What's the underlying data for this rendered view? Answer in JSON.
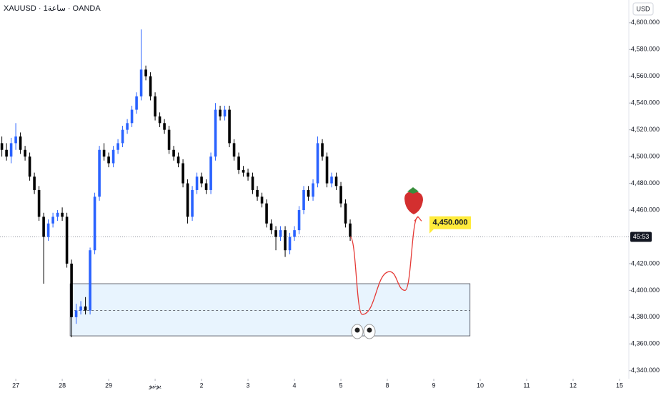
{
  "chart_data": {
    "type": "candlestick",
    "title": "XAUUSD · 1ساعة · OANDA",
    "currency": "USD",
    "up_color": "#2962ff",
    "down_color": "#000000",
    "x": [
      -0.3,
      -0.2,
      -0.1,
      0,
      0.1,
      0.2,
      0.3,
      0.4,
      0.5,
      0.6,
      0.7,
      0.8,
      0.9,
      1.0,
      1.1,
      1.2,
      1.3,
      1.4,
      1.5,
      1.6,
      1.7,
      1.8,
      1.9,
      2.0,
      2.1,
      2.2,
      2.3,
      2.4,
      2.5,
      2.6,
      2.7,
      2.8,
      2.9,
      3.0,
      3.1,
      3.2,
      3.3,
      3.4,
      3.5,
      3.6,
      3.7,
      3.8,
      3.9,
      4.0,
      4.1,
      4.2,
      4.3,
      4.4,
      4.5,
      4.6,
      4.7,
      4.8,
      4.9,
      5.0,
      5.1,
      5.2,
      5.3,
      5.4,
      5.5,
      5.6,
      5.7,
      5.8,
      5.9,
      6.0,
      6.1,
      6.2,
      6.3,
      6.4,
      6.5,
      6.6,
      6.7,
      6.8,
      6.9,
      7.0,
      7.1,
      7.2
    ],
    "open": [
      4510,
      4505,
      4500,
      4510,
      4515,
      4505,
      4500,
      4485,
      4475,
      4455,
      4440,
      4450,
      4455,
      4458,
      4455,
      4420,
      4380,
      4385,
      4388,
      4385,
      4430,
      4470,
      4505,
      4500,
      4495,
      4505,
      4510,
      4520,
      4525,
      4535,
      4545,
      4565,
      4560,
      4545,
      4530,
      4525,
      4520,
      4505,
      4500,
      4495,
      4480,
      4455,
      4475,
      4485,
      4480,
      4475,
      4500,
      4535,
      4530,
      4535,
      4510,
      4500,
      4490,
      4488,
      4485,
      4475,
      4470,
      4465,
      4450,
      4445,
      4440,
      4445,
      4430,
      4440,
      4445,
      4460,
      4475,
      4470,
      4480,
      4510,
      4500,
      4480,
      4485,
      4478,
      4465,
      4450
    ],
    "high": [
      4515,
      4510,
      4514,
      4525,
      4518,
      4508,
      4503,
      4488,
      4478,
      4458,
      4453,
      4458,
      4460,
      4462,
      4458,
      4423,
      4390,
      4392,
      4395,
      4432,
      4473,
      4508,
      4510,
      4503,
      4508,
      4513,
      4523,
      4528,
      4538,
      4548,
      4595,
      4568,
      4563,
      4548,
      4533,
      4528,
      4523,
      4508,
      4503,
      4498,
      4483,
      4478,
      4488,
      4488,
      4483,
      4503,
      4540,
      4538,
      4538,
      4538,
      4513,
      4503,
      4493,
      4491,
      4488,
      4478,
      4473,
      4468,
      4453,
      4448,
      4448,
      4448,
      4443,
      4448,
      4463,
      4478,
      4478,
      4483,
      4515,
      4513,
      4503,
      4488,
      4488,
      4481,
      4468,
      4453
    ],
    "low": [
      4500,
      4497,
      4495,
      4505,
      4502,
      4497,
      4482,
      4472,
      4452,
      4405,
      4437,
      4447,
      4452,
      4452,
      4417,
      4365,
      4375,
      4382,
      4382,
      4382,
      4427,
      4467,
      4497,
      4492,
      4492,
      4502,
      4507,
      4517,
      4522,
      4532,
      4542,
      4557,
      4542,
      4527,
      4522,
      4517,
      4502,
      4497,
      4492,
      4477,
      4450,
      4452,
      4472,
      4477,
      4472,
      4472,
      4497,
      4527,
      4527,
      4507,
      4497,
      4487,
      4485,
      4482,
      4472,
      4467,
      4462,
      4447,
      4442,
      4430,
      4437,
      4425,
      4427,
      4437,
      4442,
      4457,
      4467,
      4467,
      4477,
      4497,
      4477,
      4477,
      4475,
      4462,
      4447,
      4437
    ],
    "close": [
      4505,
      4500,
      4510,
      4515,
      4505,
      4500,
      4485,
      4475,
      4455,
      4440,
      4450,
      4455,
      4458,
      4455,
      4420,
      4380,
      4385,
      4388,
      4385,
      4430,
      4470,
      4505,
      4500,
      4495,
      4505,
      4510,
      4520,
      4525,
      4535,
      4545,
      4565,
      4560,
      4545,
      4530,
      4525,
      4520,
      4505,
      4500,
      4495,
      4480,
      4455,
      4475,
      4485,
      4480,
      4475,
      4500,
      4535,
      4530,
      4535,
      4510,
      4500,
      4490,
      4488,
      4485,
      4475,
      4470,
      4465,
      4450,
      4445,
      4440,
      4445,
      4430,
      4440,
      4445,
      4460,
      4475,
      4470,
      4480,
      4510,
      4500,
      4480,
      4485,
      4478,
      4465,
      4450,
      4440
    ],
    "xlim": [
      -0.34,
      13.2
    ],
    "ylim": [
      4334,
      4617
    ],
    "xticks": [
      {
        "value": 0,
        "label": "27"
      },
      {
        "value": 1,
        "label": "28"
      },
      {
        "value": 2,
        "label": "29"
      },
      {
        "value": 3,
        "label": "يونيو"
      },
      {
        "value": 4,
        "label": "2"
      },
      {
        "value": 5,
        "label": "3"
      },
      {
        "value": 6,
        "label": "4"
      },
      {
        "value": 7,
        "label": "5"
      },
      {
        "value": 8,
        "label": "8"
      },
      {
        "value": 9,
        "label": "9"
      },
      {
        "value": 10,
        "label": "10"
      },
      {
        "value": 11,
        "label": "11"
      },
      {
        "value": 12,
        "label": "12"
      },
      {
        "value": 13,
        "label": "15"
      }
    ],
    "yticks": [
      {
        "value": 4340,
        "label": "4,340.000"
      },
      {
        "value": 4360,
        "label": "4,360.000"
      },
      {
        "value": 4380,
        "label": "4,380.000"
      },
      {
        "value": 4400,
        "label": "4,400.000"
      },
      {
        "value": 4420,
        "label": "4,420.000"
      },
      {
        "value": 4460,
        "label": "4,460.000"
      },
      {
        "value": 4480,
        "label": "4,480.000"
      },
      {
        "value": 4500,
        "label": "4,500.000"
      },
      {
        "value": 4520,
        "label": "4,520.000"
      },
      {
        "value": 4540,
        "label": "4,540.000"
      },
      {
        "value": 4560,
        "label": "4,560.000"
      },
      {
        "value": 4580,
        "label": "4,580.000"
      },
      {
        "value": 4600,
        "label": "4,600.000"
      }
    ],
    "last_price": {
      "value": 4440,
      "label": "45:53"
    },
    "zone": {
      "x0": 1.17,
      "x1": 9.78,
      "top": 4405,
      "bottom": 4366,
      "mid": 4385
    },
    "projection": {
      "x": [
        7.2,
        7.46,
        8.05,
        8.38,
        8.66
      ],
      "values": [
        4440,
        4382,
        4414,
        4400,
        4455
      ],
      "color": "#e53935"
    },
    "target": {
      "value": 4450,
      "label": "4,450.000"
    }
  }
}
